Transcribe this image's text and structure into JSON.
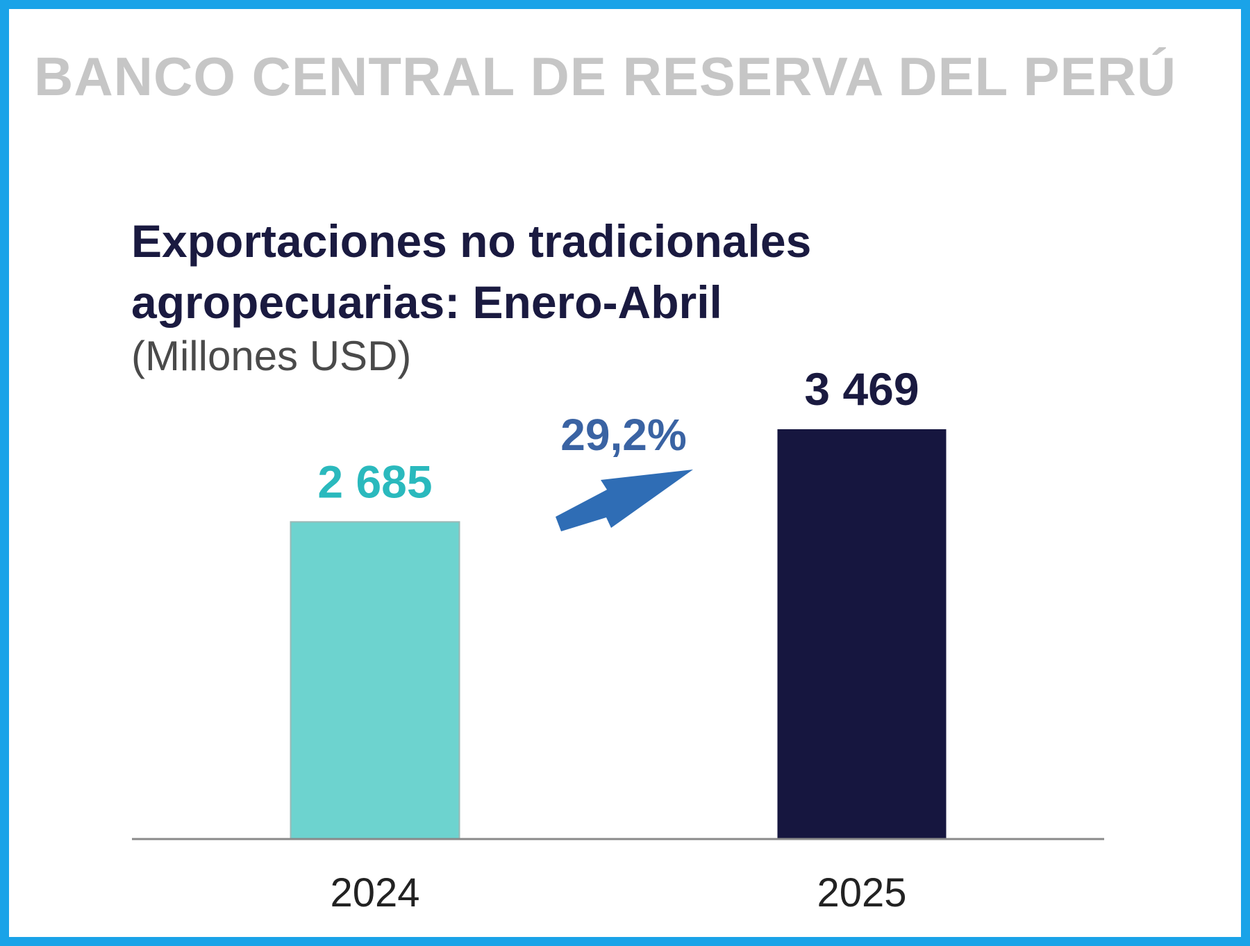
{
  "header": {
    "brand": "BANCO CENTRAL DE RESERVA DEL PERÚ"
  },
  "chart_data": {
    "type": "bar",
    "title_lines": [
      "Exportaciones no tradicionales",
      "agropecuarias: Enero-Abril"
    ],
    "subtitle": "(Millones USD)",
    "categories": [
      "2024",
      "2025"
    ],
    "values": [
      2685,
      3469
    ],
    "value_labels": [
      "2 685",
      "3 469"
    ],
    "bar_colors": [
      "#6dd3cf",
      "#16163f"
    ],
    "value_label_colors": [
      "#2ab9bd",
      "#1a1a40"
    ],
    "ylim": [
      0,
      3469
    ],
    "grid": false,
    "annotation": {
      "text": "29,2%",
      "color": "#3a63a3",
      "arrow_color": "#2f6db5",
      "icon": "arrow-up-right-icon"
    }
  }
}
